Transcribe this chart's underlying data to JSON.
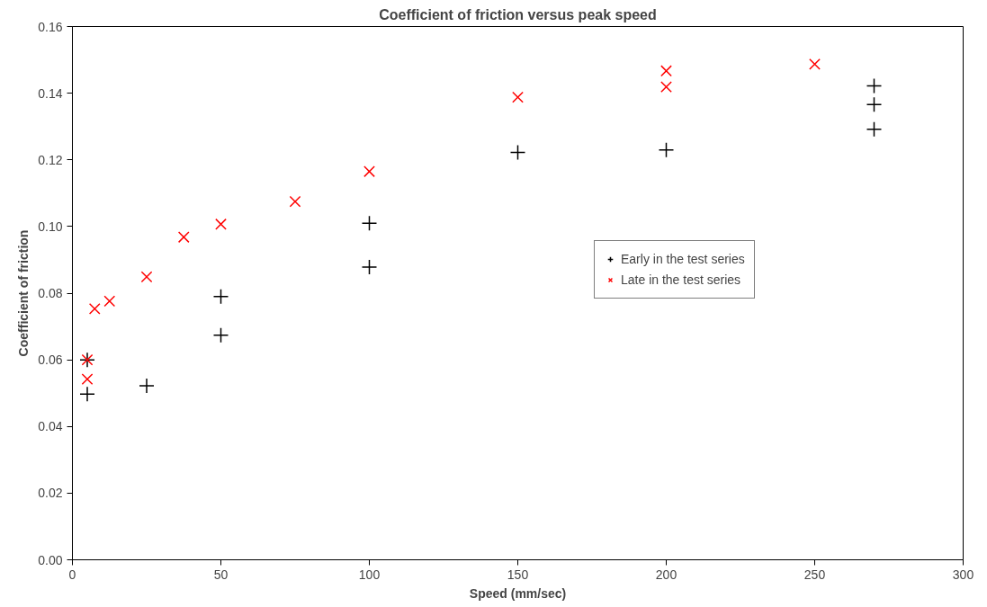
{
  "chart_data": {
    "type": "scatter",
    "title": "Coefficient of friction versus peak speed",
    "xlabel": "Speed (mm/sec)",
    "ylabel": "Coefficient of friction",
    "series": [
      {
        "name": "Early in the test series",
        "color": "#000000",
        "marker": "cross",
        "x": [
          5,
          5,
          25,
          50,
          50,
          100,
          100,
          150,
          200,
          270,
          270,
          270
        ],
        "values": [
          0.06,
          0.0497,
          0.0522,
          0.079,
          0.0674,
          0.101,
          0.0878,
          0.1222,
          0.123,
          0.1422,
          0.1366,
          0.1292
        ]
      },
      {
        "name": "Late in the test series",
        "color": "#ff0000",
        "marker": "x",
        "x": [
          5,
          5,
          7.5,
          12.5,
          25,
          37.5,
          50,
          75,
          100,
          150,
          200,
          200,
          250
        ],
        "values": [
          0.06,
          0.0542,
          0.0753,
          0.0776,
          0.0849,
          0.0968,
          0.1007,
          0.1075,
          0.1165,
          0.1388,
          0.1467,
          0.1419,
          0.1487
        ]
      }
    ],
    "xlim": [
      0,
      300
    ],
    "xticks": [
      0,
      50,
      100,
      150,
      200,
      250,
      300
    ],
    "ylim": [
      0,
      0.16
    ],
    "yticks": [
      {
        "value": 0,
        "label": "0.00"
      },
      {
        "value": 0.02,
        "label": "0.02"
      },
      {
        "value": 0.04,
        "label": "0.04"
      },
      {
        "value": 0.06,
        "label": "0.06"
      },
      {
        "value": 0.08,
        "label": "0.08"
      },
      {
        "value": 0.1,
        "label": "0.10"
      },
      {
        "value": 0.12,
        "label": "0.12"
      },
      {
        "value": 0.14,
        "label": "0.14"
      },
      {
        "value": 0.16,
        "label": "0.16"
      }
    ],
    "grid": false,
    "legend": "right"
  }
}
